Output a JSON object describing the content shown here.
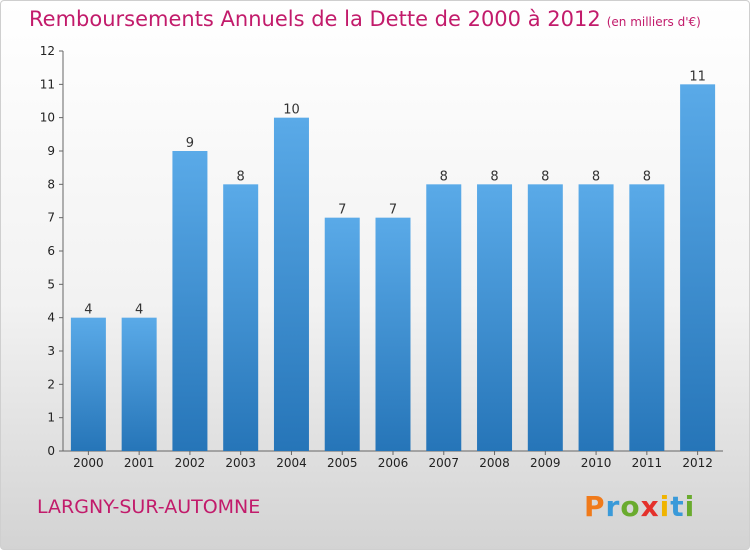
{
  "title": "Remboursements Annuels de la Dette de 2000 à 2012",
  "unit": "(en milliers d'€)",
  "commune": "LARGNY-SUR-AUTOMNE",
  "logo": {
    "letters": [
      "P",
      "r",
      "o",
      "x",
      "i",
      "t",
      "i"
    ],
    "colors": [
      "#f07a1a",
      "#3a9ad9",
      "#6aab2e",
      "#e4312b",
      "#f0b400",
      "#3a9ad9",
      "#6aab2e"
    ]
  },
  "colors": {
    "title": "#c21b6b",
    "bar_light": "#5aaae8",
    "bar_dark": "#2675b8"
  },
  "chart_data": {
    "type": "bar",
    "title": "Remboursements Annuels de la Dette de 2000 à 2012",
    "xlabel": "",
    "ylabel": "",
    "categories": [
      "2000",
      "2001",
      "2002",
      "2003",
      "2004",
      "2005",
      "2006",
      "2007",
      "2008",
      "2009",
      "2010",
      "2011",
      "2012"
    ],
    "values": [
      4,
      4,
      9,
      8,
      10,
      7,
      7,
      8,
      8,
      8,
      8,
      8,
      11
    ],
    "data_labels": [
      "4",
      "4",
      "9",
      "8",
      "10",
      "7",
      "7",
      "8",
      "8",
      "8",
      "8",
      "8",
      "11"
    ],
    "ylim": [
      0,
      12
    ],
    "yticks": [
      "0",
      "1",
      "2",
      "3",
      "4",
      "5",
      "6",
      "7",
      "8",
      "9",
      "10",
      "11",
      "12"
    ],
    "grid": false,
    "legend": "none"
  }
}
